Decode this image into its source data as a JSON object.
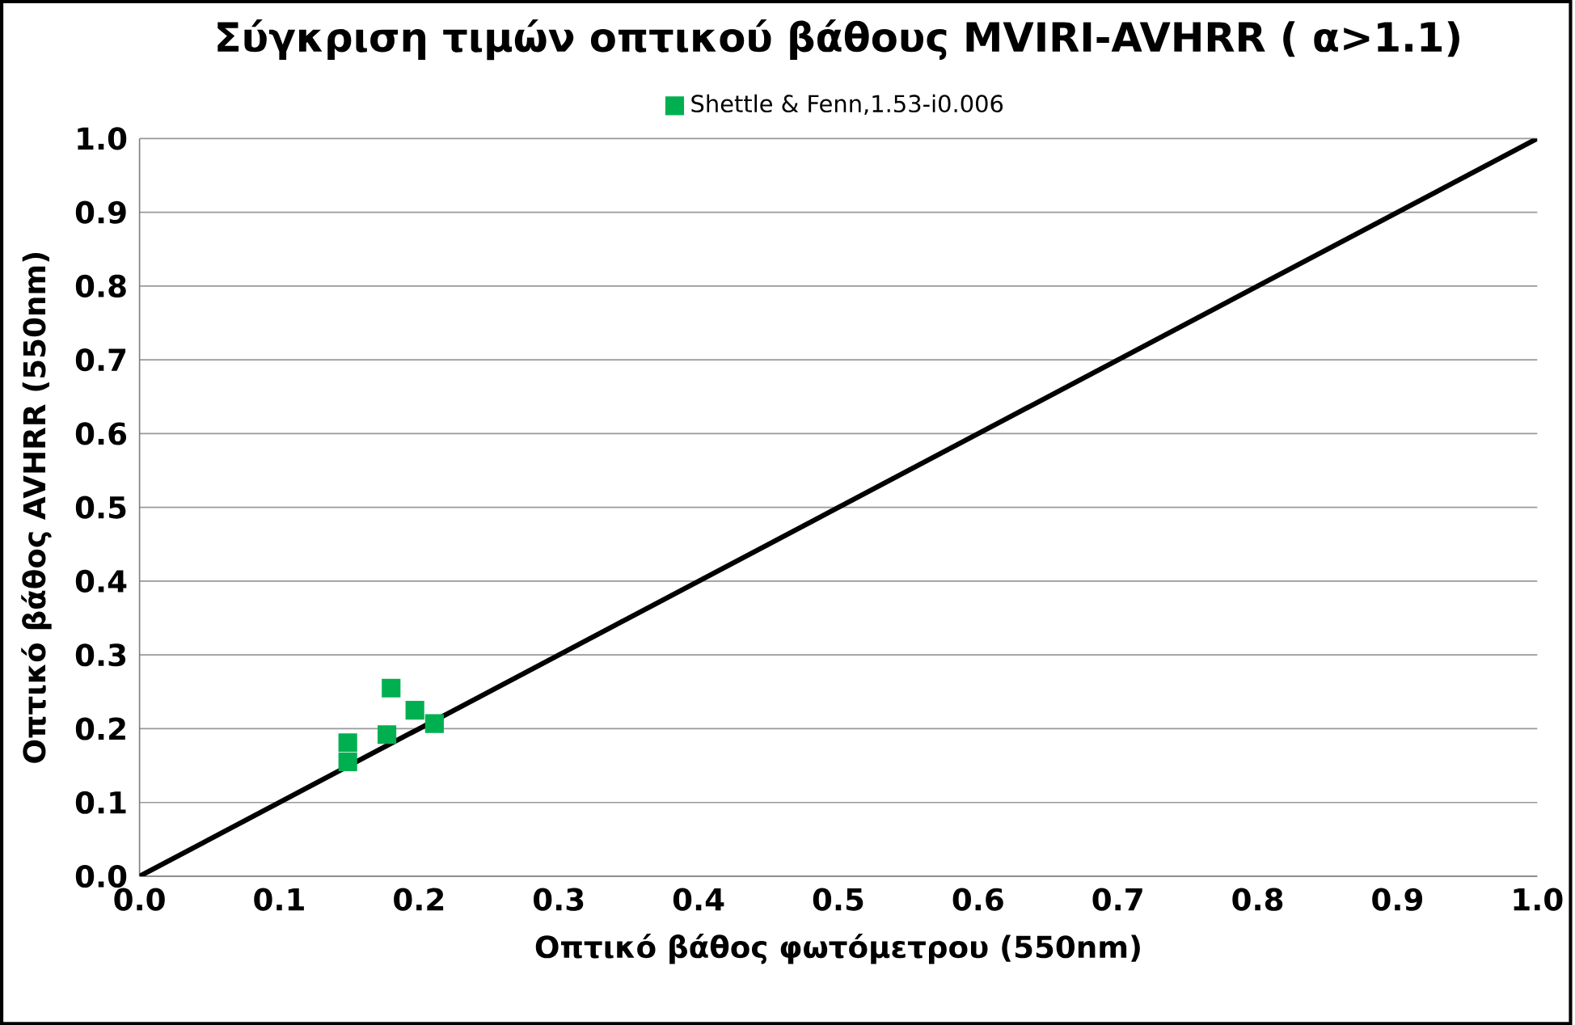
{
  "chart_data": {
    "type": "scatter",
    "title": "Σύγκριση τιμών οπτικού βάθους MVIRI-AVHRR ( α>1.1)",
    "xlabel": "Οπτικό βάθος φωτόμετρου (550nm)",
    "ylabel": "Οπτικό βάθος AVHRR (550nm)",
    "xlim": [
      0,
      1
    ],
    "ylim": [
      0,
      1
    ],
    "xticks": [
      {
        "value": 0,
        "label": "0.0"
      },
      {
        "value": 0.1,
        "label": "0.1"
      },
      {
        "value": 0.2,
        "label": "0.2"
      },
      {
        "value": 0.3,
        "label": "0.3"
      },
      {
        "value": 0.4,
        "label": "0.4"
      },
      {
        "value": 0.5,
        "label": "0.5"
      },
      {
        "value": 0.6,
        "label": "0.6"
      },
      {
        "value": 0.7,
        "label": "0.7"
      },
      {
        "value": 0.8,
        "label": "0.8"
      },
      {
        "value": 0.9,
        "label": "0.9"
      },
      {
        "value": 1,
        "label": "1.0"
      }
    ],
    "yticks": [
      {
        "value": 0,
        "label": "0.0"
      },
      {
        "value": 0.1,
        "label": "0.1"
      },
      {
        "value": 0.2,
        "label": "0.2"
      },
      {
        "value": 0.3,
        "label": "0.3"
      },
      {
        "value": 0.4,
        "label": "0.4"
      },
      {
        "value": 0.5,
        "label": "0.5"
      },
      {
        "value": 0.6,
        "label": "0.6"
      },
      {
        "value": 0.7,
        "label": "0.7"
      },
      {
        "value": 0.8,
        "label": "0.8"
      },
      {
        "value": 0.9,
        "label": "0.9"
      },
      {
        "value": 1,
        "label": "1.0"
      }
    ],
    "grid": "y",
    "legend": "top",
    "series": [
      {
        "name": "Shettle & Fenn,1.53-i0.006",
        "color": "#00b050",
        "marker": "square",
        "x": [
          0.149,
          0.149,
          0.18,
          0.177,
          0.197,
          0.211
        ],
        "values": [
          0.181,
          0.155,
          0.255,
          0.192,
          0.225,
          0.207
        ]
      },
      {
        "type": "line",
        "color": "#000000",
        "marker": "none",
        "x": [
          0,
          1
        ],
        "values": [
          0,
          1
        ]
      }
    ]
  }
}
